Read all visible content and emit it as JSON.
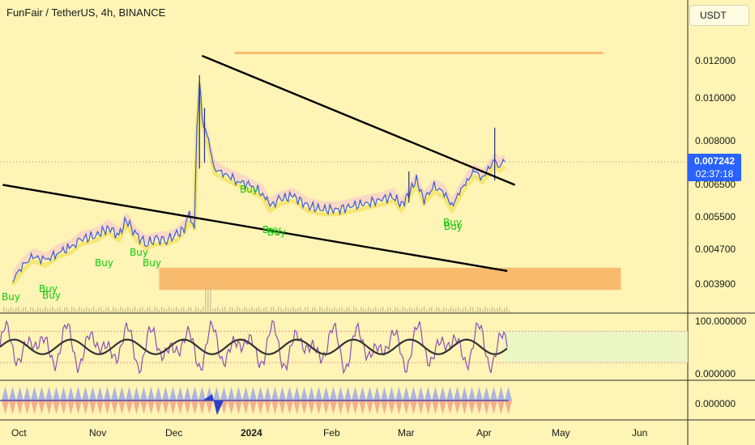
{
  "header": {
    "title": "FunFair / TetherUS, 4h, BINANCE",
    "currency": "USDT"
  },
  "price_badge": {
    "price": "0.007242",
    "countdown": "02:37:18"
  },
  "colors": {
    "background": "#fdf4b5",
    "candle_up": "#3b5bd9",
    "candle_down": "#1f2d7a",
    "accent_blue": "#2962ff",
    "signal_green": "#11c80f",
    "zone_orange": "#f7b566",
    "cloud_pink": "#f9c5cf",
    "band_yellow": "#f5e46a",
    "oscillator_purple": "#8a4fb4",
    "oscillator_dark": "#333333"
  },
  "chart_data": [
    {
      "type": "line",
      "title": "FunFair / TetherUS, 4h, BINANCE",
      "y_axis": {
        "scale": "log",
        "ticks": [
          "0.012000",
          "0.010000",
          "0.008000",
          "0.006500",
          "0.005500",
          "0.004700",
          "0.003900"
        ],
        "tick_values": [
          0.012,
          0.01,
          0.008,
          0.0065,
          0.0055,
          0.0047,
          0.0039
        ]
      },
      "x_axis": {
        "ticks": [
          "Oct",
          "Nov",
          "Dec",
          "2024",
          "Feb",
          "Mar",
          "Apr",
          "May",
          "Jun"
        ]
      },
      "series": [
        {
          "values": [
            [
              "2023-09-29",
              0.004
            ],
            [
              "2023-10-03",
              0.0043
            ],
            [
              "2023-10-07",
              0.0045
            ],
            [
              "2023-10-12",
              0.0044
            ],
            [
              "2023-10-17",
              0.0046
            ],
            [
              "2023-10-22",
              0.0047
            ],
            [
              "2023-10-26",
              0.0049
            ],
            [
              "2023-11-01",
              0.005
            ],
            [
              "2023-11-06",
              0.0052
            ],
            [
              "2023-11-10",
              0.005
            ],
            [
              "2023-11-13",
              0.0054
            ],
            [
              "2023-11-17",
              0.005
            ],
            [
              "2023-11-21",
              0.0048
            ],
            [
              "2023-11-25",
              0.0049
            ],
            [
              "2023-11-29",
              0.0049
            ],
            [
              "2023-12-03",
              0.005
            ],
            [
              "2023-12-06",
              0.0052
            ],
            [
              "2023-12-08",
              0.0055
            ],
            [
              "2023-12-10",
              0.0053
            ],
            [
              "2023-12-11",
              0.0085
            ],
            [
              "2023-12-12",
              0.011
            ],
            [
              "2023-12-13",
              0.009
            ],
            [
              "2023-12-15",
              0.0083
            ],
            [
              "2023-12-18",
              0.007
            ],
            [
              "2023-12-22",
              0.0068
            ],
            [
              "2023-12-27",
              0.0066
            ],
            [
              "2024-01-01",
              0.0064
            ],
            [
              "2024-01-06",
              0.0062
            ],
            [
              "2024-01-09",
              0.0058
            ],
            [
              "2024-01-13",
              0.006
            ],
            [
              "2024-01-18",
              0.0061
            ],
            [
              "2024-01-24",
              0.0058
            ],
            [
              "2024-01-30",
              0.0057
            ],
            [
              "2024-02-05",
              0.0057
            ],
            [
              "2024-02-11",
              0.0058
            ],
            [
              "2024-02-17",
              0.0059
            ],
            [
              "2024-02-23",
              0.006
            ],
            [
              "2024-02-27",
              0.0061
            ],
            [
              "2024-03-01",
              0.0058
            ],
            [
              "2024-03-04",
              0.0062
            ],
            [
              "2024-03-07",
              0.0066
            ],
            [
              "2024-03-10",
              0.006
            ],
            [
              "2024-03-14",
              0.0064
            ],
            [
              "2024-03-18",
              0.0062
            ],
            [
              "2024-03-21",
              0.0058
            ],
            [
              "2024-03-24",
              0.0062
            ],
            [
              "2024-03-27",
              0.0066
            ],
            [
              "2024-03-30",
              0.0069
            ],
            [
              "2024-04-02",
              0.0067
            ],
            [
              "2024-04-05",
              0.007
            ],
            [
              "2024-04-07",
              0.0073
            ],
            [
              "2024-04-09",
              0.0071
            ],
            [
              "2024-04-11",
              0.007242
            ]
          ]
        }
      ],
      "trendlines": [
        {
          "from": [
            "2023-09-25",
            0.00645
          ],
          "to": [
            "2024-04-12",
            0.00418
          ]
        },
        {
          "from": [
            "2023-12-13",
            0.01235
          ],
          "to": [
            "2024-04-15",
            0.00645
          ]
        }
      ],
      "zones": [
        {
          "x_range": [
            "2023-12-26",
            "2024-05-20"
          ],
          "y_range": [
            0.01245,
            0.0126
          ]
        },
        {
          "x_range": [
            "2023-11-26",
            "2024-05-27"
          ],
          "y_range": [
            0.0038,
            0.00425
          ]
        }
      ],
      "annotations": [
        "Buy",
        "Buy",
        "Buy",
        "Buy",
        "Buy",
        "Buy",
        "Buy",
        "Buy",
        "Buy",
        "Buy",
        "Buy"
      ],
      "last_price": 0.007242
    },
    {
      "type": "line",
      "title": "",
      "y_axis": {
        "ticks": [
          "100.000000",
          "0.000000"
        ],
        "range": [
          0,
          100
        ]
      },
      "bands": [
        80,
        20
      ]
    },
    {
      "type": "area",
      "title": "",
      "y_axis": {
        "ticks": [
          "0.000000"
        ]
      }
    }
  ]
}
